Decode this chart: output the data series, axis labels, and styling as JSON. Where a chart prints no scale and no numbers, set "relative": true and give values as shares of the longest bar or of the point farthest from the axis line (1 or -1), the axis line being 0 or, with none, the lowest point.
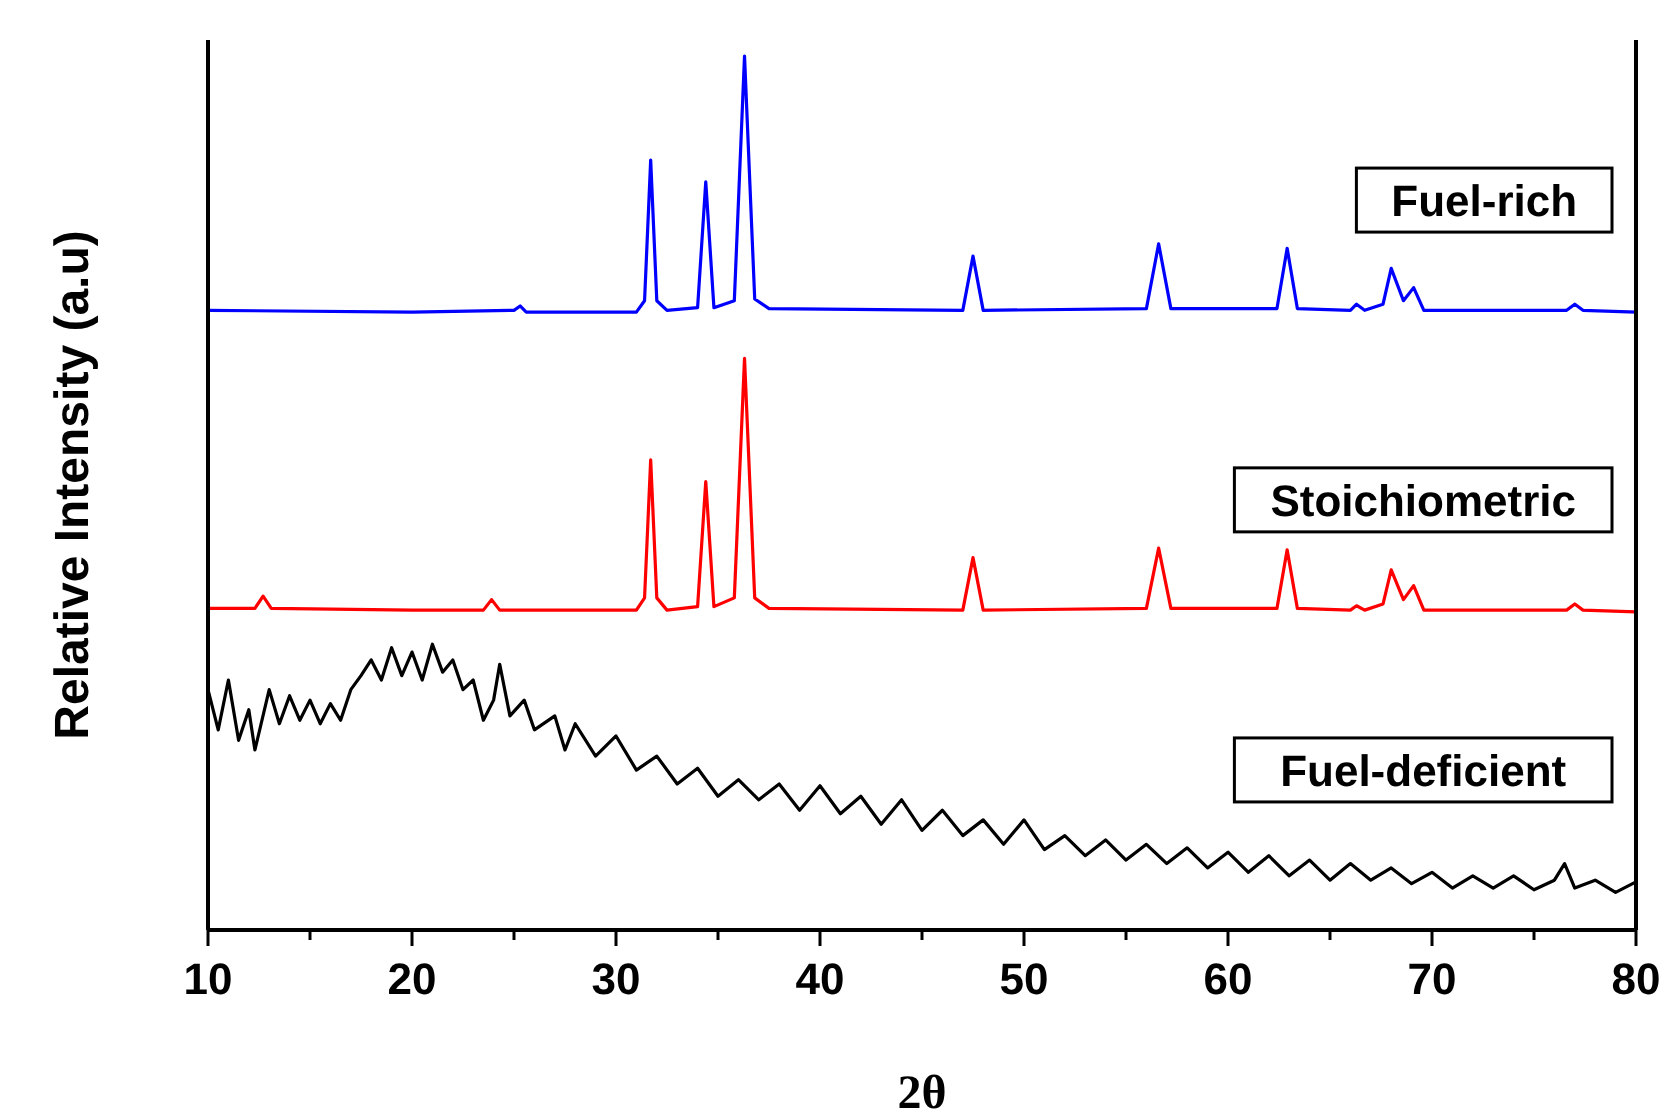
{
  "chart_data": {
    "type": "line",
    "relative": true,
    "xlabel": "2θ",
    "ylabel": "Relative Intensity (a.u)",
    "legend": false,
    "grid": false,
    "marker": "none",
    "line_style": "solid",
    "xlim": [
      10,
      80
    ],
    "xticks": [
      10,
      {
        "value": 15,
        "label": null
      },
      20,
      {
        "value": 25,
        "label": null
      },
      30,
      {
        "value": 35,
        "label": null
      },
      40,
      {
        "value": 45,
        "label": null
      },
      50,
      {
        "value": 55,
        "label": null
      },
      60,
      {
        "value": 65,
        "label": null
      },
      70,
      {
        "value": 75,
        "label": null
      },
      80
    ],
    "series": [
      {
        "name": "Fuel-rich",
        "color": "#0000ff",
        "x": [
          10,
          20,
          25,
          25.3,
          25.6,
          31,
          31.4,
          31.7,
          32,
          32.5,
          34,
          34.4,
          34.8,
          35.8,
          36.3,
          36.8,
          37.5,
          47,
          47.5,
          48,
          56,
          56.6,
          57.2,
          62.4,
          62.9,
          63.4,
          66,
          66.3,
          66.7,
          67.6,
          68,
          68.6,
          69.1,
          69.6,
          76.6,
          77,
          77.4,
          80
        ],
        "values": [
          0.709,
          0.707,
          0.709,
          0.714,
          0.707,
          0.707,
          0.72,
          0.881,
          0.72,
          0.709,
          0.712,
          0.856,
          0.712,
          0.72,
          1,
          0.722,
          0.711,
          0.709,
          0.771,
          0.709,
          0.711,
          0.785,
          0.711,
          0.711,
          0.78,
          0.711,
          0.709,
          0.716,
          0.709,
          0.716,
          0.757,
          0.72,
          0.735,
          0.709,
          0.709,
          0.716,
          0.709,
          0.707
        ]
      },
      {
        "name": "Stoichiometric",
        "color": "#ff0000",
        "x": [
          10,
          12.3,
          12.7,
          13.1,
          20,
          23.5,
          23.9,
          24.3,
          31,
          31.4,
          31.7,
          32,
          32.5,
          34,
          34.4,
          34.8,
          35.8,
          36.3,
          36.8,
          37.5,
          47,
          47.5,
          48,
          56,
          56.6,
          57.2,
          62.4,
          62.9,
          63.4,
          66,
          66.3,
          66.7,
          67.6,
          68,
          68.6,
          69.1,
          69.6,
          76.6,
          77,
          77.4,
          80
        ],
        "values": [
          0.368,
          0.368,
          0.382,
          0.368,
          0.366,
          0.366,
          0.378,
          0.366,
          0.366,
          0.38,
          0.538,
          0.38,
          0.366,
          0.37,
          0.513,
          0.37,
          0.38,
          0.654,
          0.38,
          0.368,
          0.366,
          0.426,
          0.366,
          0.368,
          0.437,
          0.368,
          0.368,
          0.435,
          0.368,
          0.366,
          0.371,
          0.366,
          0.373,
          0.412,
          0.378,
          0.394,
          0.366,
          0.366,
          0.373,
          0.366,
          0.364
        ]
      },
      {
        "name": "Fuel-deficient",
        "color": "#000000",
        "x": [
          10,
          10.5,
          11,
          11.5,
          12,
          12.3,
          13,
          13.5,
          14,
          14.5,
          15,
          15.5,
          16,
          16.5,
          17,
          17.5,
          18,
          18.5,
          19,
          19.5,
          20,
          20.5,
          21,
          21.5,
          22,
          22.5,
          23,
          23.5,
          24,
          24.3,
          24.8,
          25.5,
          26,
          27,
          27.5,
          28,
          29,
          30,
          31,
          32,
          33,
          34,
          35,
          36,
          37,
          38,
          39,
          40,
          41,
          42,
          43,
          44,
          45,
          46,
          47,
          48,
          49,
          50,
          51,
          52,
          53,
          54,
          55,
          56,
          57,
          58,
          59,
          60,
          61,
          62,
          63,
          64,
          65,
          66,
          67,
          68,
          69,
          70,
          71,
          72,
          73,
          74,
          75,
          76,
          76.5,
          77,
          78,
          79,
          80
        ],
        "values": [
          0.275,
          0.229,
          0.286,
          0.217,
          0.252,
          0.206,
          0.275,
          0.236,
          0.268,
          0.24,
          0.263,
          0.236,
          0.259,
          0.24,
          0.275,
          0.291,
          0.309,
          0.286,
          0.323,
          0.291,
          0.318,
          0.286,
          0.327,
          0.295,
          0.309,
          0.275,
          0.286,
          0.24,
          0.263,
          0.304,
          0.245,
          0.263,
          0.229,
          0.245,
          0.206,
          0.236,
          0.199,
          0.222,
          0.183,
          0.199,
          0.167,
          0.185,
          0.153,
          0.172,
          0.149,
          0.167,
          0.137,
          0.165,
          0.133,
          0.153,
          0.121,
          0.149,
          0.114,
          0.137,
          0.108,
          0.126,
          0.098,
          0.126,
          0.092,
          0.108,
          0.085,
          0.103,
          0.08,
          0.098,
          0.076,
          0.094,
          0.071,
          0.089,
          0.066,
          0.085,
          0.062,
          0.08,
          0.057,
          0.076,
          0.057,
          0.071,
          0.053,
          0.066,
          0.048,
          0.062,
          0.048,
          0.062,
          0.046,
          0.057,
          0.076,
          0.048,
          0.057,
          0.043,
          0.055
        ]
      }
    ]
  }
}
